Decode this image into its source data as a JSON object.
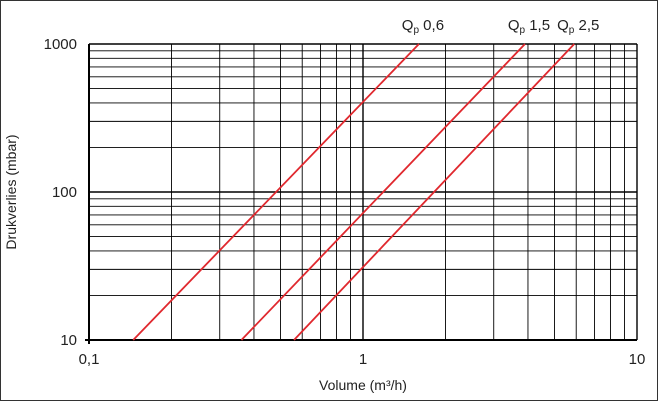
{
  "chart_data": {
    "type": "line",
    "title": "",
    "xlabel": "Volume (m³/h)",
    "ylabel": "Drukverlies (mbar)",
    "x_scale": "log",
    "y_scale": "log",
    "xlim": [
      0.1,
      10
    ],
    "ylim": [
      10,
      1000
    ],
    "x_ticks": [
      {
        "value": 0.1,
        "label": "0,1"
      },
      {
        "value": 1,
        "label": "1"
      },
      {
        "value": 10,
        "label": "10"
      }
    ],
    "y_ticks": [
      {
        "value": 10,
        "label": "10"
      },
      {
        "value": 100,
        "label": "100"
      },
      {
        "value": 1000,
        "label": "1000"
      }
    ],
    "grid": true,
    "colors": {
      "series": "#e0282e",
      "grid": "#000000",
      "text": "#222222"
    },
    "series": [
      {
        "name": "Qp 0,6",
        "label_main": "Q",
        "label_sub": "p",
        "label_value": "0,6",
        "x": [
          0.145,
          1.6
        ],
        "y": [
          10,
          1000
        ]
      },
      {
        "name": "Qp 1,5",
        "label_main": "Q",
        "label_sub": "p",
        "label_value": "1,5",
        "x": [
          0.36,
          3.9
        ],
        "y": [
          10,
          1000
        ]
      },
      {
        "name": "Qp 2,5",
        "label_main": "Q",
        "label_sub": "p",
        "label_value": "2,5",
        "x": [
          0.56,
          5.9
        ],
        "y": [
          10,
          1000
        ]
      }
    ]
  }
}
